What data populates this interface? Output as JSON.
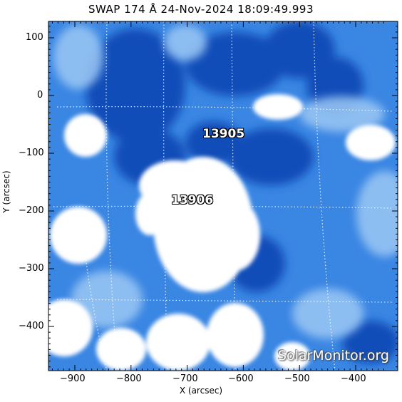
{
  "title": "SWAP 174 Å 24-Nov-2024 18:09:49.993",
  "xlabel": "X (arcsec)",
  "ylabel": "Y (arcsec)",
  "x_ticks": [
    "−900",
    "−800",
    "−700",
    "−600",
    "−500",
    "−400"
  ],
  "y_ticks": [
    "100",
    "0",
    "−100",
    "−200",
    "−300",
    "−400"
  ],
  "regions": [
    "13905",
    "13906"
  ],
  "watermark": "SolarMonitor.org",
  "colors": {
    "dark": "#0a3fa8",
    "mid": "#2f7fe0",
    "light": "#a9cff5",
    "bright": "#ffffff"
  }
}
